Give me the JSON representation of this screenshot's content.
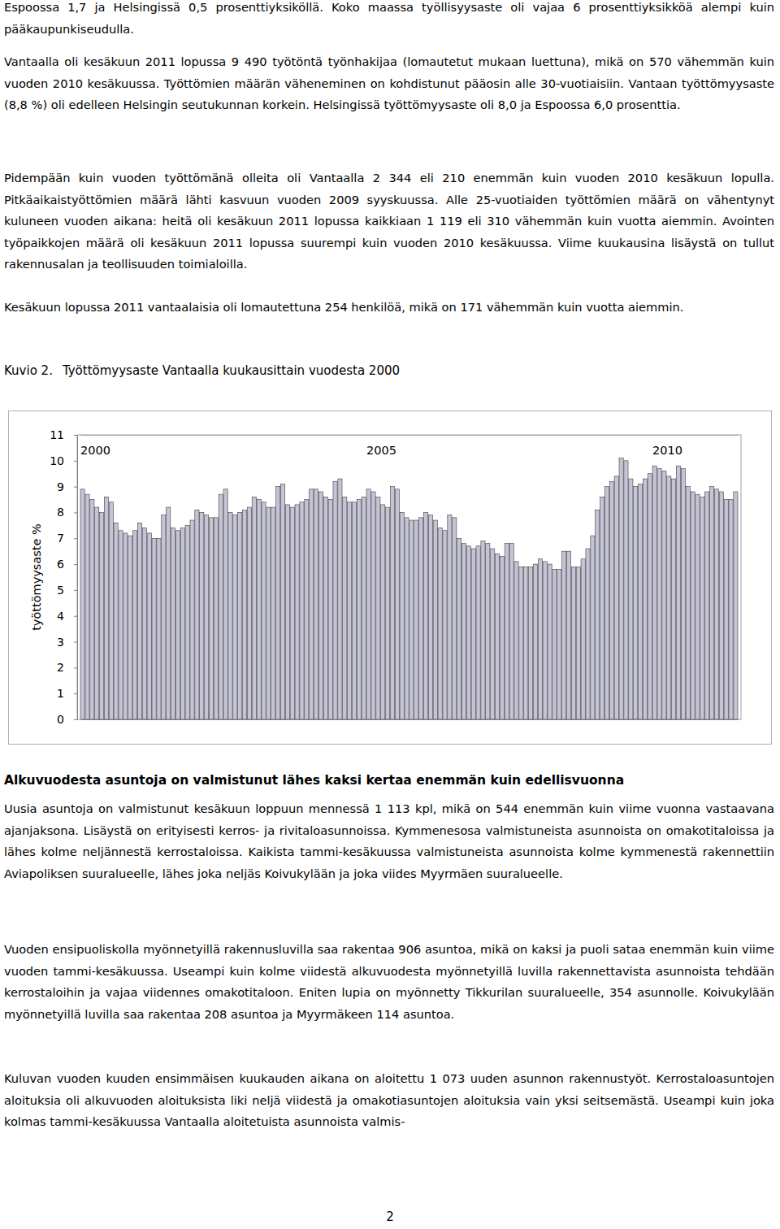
{
  "document": {
    "paragraphs_top": [
      "Espoossa 1,7 ja Helsingissä 0,5 prosenttiyksiköllä. Koko maassa työllisyysaste oli vajaa 6 prosenttiyksikköä alempi kuin pääkaupunkiseudulla.",
      "Vantaalla oli kesäkuun 2011 lopussa 9 490 työtöntä työnhakijaa (lomautetut mukaan luettuna), mikä on 570 vähemmän kuin vuoden 2010 kesäkuussa. Työttömien määrän väheneminen on kohdistunut pääosin alle 30-vuotiaisiin. Vantaan työttömyysaste (8,8 %) oli edelleen Helsingin seutukunnan korkein. Helsingissä työttömyysaste oli 8,0 ja Espoossa 6,0 prosenttia.",
      "Pidempään kuin vuoden työttömänä olleita oli Vantaalla 2 344 eli 210 enemmän kuin vuoden 2010 kesäkuun lopulla. Pitkäaikaistyöttömien määrä lähti kasvuun vuoden 2009 syyskuussa. Alle 25-vuotiaiden työttömien määrä on vähentynyt kuluneen vuoden aikana: heitä oli kesäkuun 2011 lopussa kaikkiaan 1 119 eli 310 vähemmän kuin vuotta aiemmin. Avointen työpaikkojen määrä oli kesäkuun 2011 lopussa suurempi kuin vuoden 2010 kesäkuussa. Viime kuukausina lisäystä on tullut rakennusalan ja teollisuuden toimialoilla.",
      "Kesäkuun lopussa 2011 vantaalaisia oli lomautettuna 254 henkilöä, mikä on 171 vähemmän kuin vuotta aiemmin."
    ],
    "caption": {
      "label": "Kuvio 2.",
      "title": "Työttömyysaste Vantaalla kuukausittain vuodesta 2000"
    },
    "heading": "Alkuvuodesta asuntoja on valmistunut lähes kaksi kertaa enemmän kuin edellisvuonna",
    "paragraphs_bottom": [
      "Uusia asuntoja on valmistunut kesäkuun loppuun mennessä 1 113 kpl, mikä on 544 enemmän kuin viime vuonna vastaavana ajanjaksona. Lisäystä on erityisesti kerros- ja rivitaloasunnoissa. Kymmenesosa valmistuneista asunnoista on omakotitaloissa ja lähes kolme neljännestä kerrostaloissa. Kaikista tammi-kesäkuussa valmistuneista asunnoista kolme kymmenestä rakennettiin Aviapoliksen suuralueelle, lähes joka neljäs Koivukylään ja joka viides Myyrmäen suuralueelle.",
      "Vuoden ensipuoliskolla myönnetyillä rakennusluvilla saa rakentaa 906 asuntoa, mikä on kaksi ja puoli sataa enemmän kuin viime vuoden tammi-kesäkuussa. Useampi kuin kolme viidestä alkuvuodesta myönnetyillä luvilla rakennettavista asunnoista tehdään kerrostaloihin ja vajaa viidennes omakotitaloon. Eniten lupia on myönnetty Tikkurilan suuralueelle, 354 asunnolle. Koivukylään myönnetyillä luvilla saa rakentaa 208 asuntoa ja Myyrmäkeen 114 asuntoa.",
      "Kuluvan vuoden kuuden ensimmäisen kuukauden aikana on aloitettu 1 073 uuden asunnon rakennustyöt. Kerrostaloasuntojen aloituksia oli alkuvuoden aloituksista liki neljä viidestä ja omakotiasuntojen aloituksia vain yksi seitsemästä. Useampi kuin joka kolmas tammi-kesäkuussa Vantaalla aloitetuista asunnoista valmis-"
    ],
    "page_number": "2"
  },
  "chart_data": {
    "type": "bar",
    "y_label": "työttömyysaste %",
    "categories": [
      "2000",
      null,
      null,
      null,
      null,
      null,
      null,
      null,
      null,
      null,
      null,
      null,
      null,
      null,
      null,
      null,
      null,
      null,
      null,
      null,
      null,
      null,
      null,
      null,
      null,
      null,
      null,
      null,
      null,
      null,
      null,
      null,
      null,
      null,
      null,
      null,
      null,
      null,
      null,
      null,
      null,
      null,
      null,
      null,
      null,
      null,
      null,
      null,
      null,
      null,
      null,
      null,
      null,
      null,
      null,
      null,
      null,
      null,
      null,
      null,
      "2005",
      null,
      null,
      null,
      null,
      null,
      null,
      null,
      null,
      null,
      null,
      null,
      null,
      null,
      null,
      null,
      null,
      null,
      null,
      null,
      null,
      null,
      null,
      null,
      null,
      null,
      null,
      null,
      null,
      null,
      null,
      null,
      null,
      null,
      null,
      null,
      null,
      null,
      null,
      null,
      null,
      null,
      null,
      null,
      null,
      null,
      null,
      null,
      null,
      null,
      null,
      null,
      null,
      null,
      null,
      null,
      null,
      null,
      null,
      null,
      "2010",
      null,
      null,
      null,
      null,
      null,
      null,
      null,
      null,
      null,
      null,
      null,
      null,
      null,
      null,
      null,
      null,
      null
    ],
    "values": [
      8.9,
      8.7,
      8.5,
      8.2,
      8.0,
      8.6,
      8.4,
      7.6,
      7.3,
      7.2,
      7.1,
      7.3,
      7.6,
      7.4,
      7.2,
      7.0,
      7.0,
      7.9,
      8.2,
      7.4,
      7.3,
      7.4,
      7.5,
      7.7,
      8.1,
      8.0,
      7.9,
      7.8,
      7.8,
      8.7,
      8.9,
      8.0,
      7.9,
      8.0,
      8.1,
      8.2,
      8.6,
      8.5,
      8.4,
      8.2,
      8.2,
      9.0,
      9.1,
      8.3,
      8.2,
      8.3,
      8.4,
      8.5,
      8.9,
      8.9,
      8.8,
      8.6,
      8.5,
      9.2,
      9.3,
      8.6,
      8.4,
      8.4,
      8.5,
      8.6,
      8.9,
      8.8,
      8.6,
      8.3,
      8.2,
      9.0,
      8.9,
      8.0,
      7.8,
      7.7,
      7.7,
      7.8,
      8.0,
      7.9,
      7.7,
      7.4,
      7.3,
      7.9,
      7.8,
      7.0,
      6.8,
      6.7,
      6.6,
      6.7,
      6.9,
      6.8,
      6.6,
      6.4,
      6.3,
      6.8,
      6.8,
      6.1,
      5.9,
      5.9,
      5.9,
      6.0,
      6.2,
      6.1,
      6.0,
      5.8,
      5.8,
      6.5,
      6.5,
      5.9,
      5.9,
      6.2,
      6.6,
      7.1,
      8.1,
      8.6,
      9.0,
      9.2,
      9.4,
      10.1,
      10.0,
      9.3,
      9.0,
      9.1,
      9.3,
      9.5,
      9.8,
      9.7,
      9.6,
      9.4,
      9.3,
      9.8,
      9.7,
      9.0,
      8.8,
      8.7,
      8.6,
      8.8,
      9.0,
      8.9,
      8.8,
      8.5,
      8.5,
      8.8
    ],
    "color": "#c4c4d6",
    "ylim": [
      0,
      11
    ],
    "yticks": [
      0,
      1,
      2,
      3,
      4,
      5,
      6,
      7,
      8,
      9,
      10,
      11
    ],
    "grid": false
  }
}
